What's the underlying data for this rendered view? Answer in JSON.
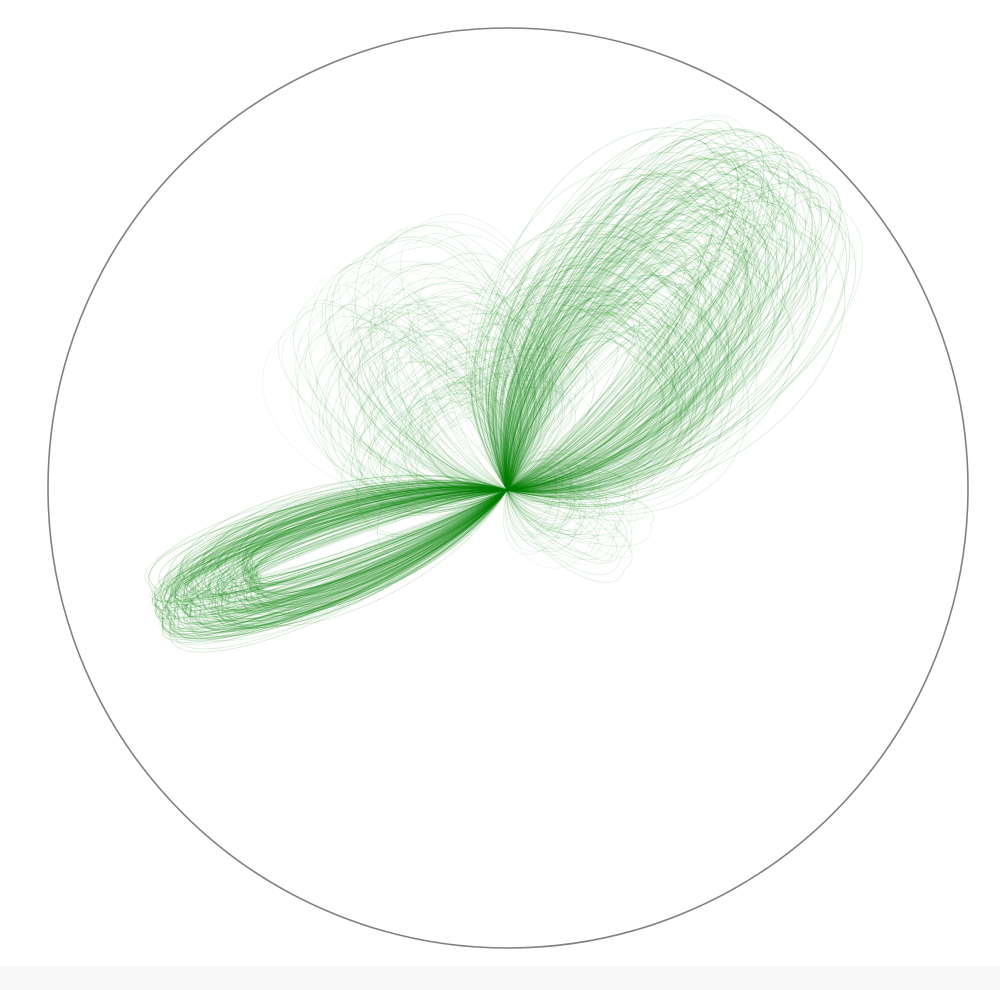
{
  "figure": {
    "boundary_color": "#808080",
    "stroke_color": "#008000",
    "background_color": "#ffffff",
    "footer_color": "#f8f8f8"
  }
}
